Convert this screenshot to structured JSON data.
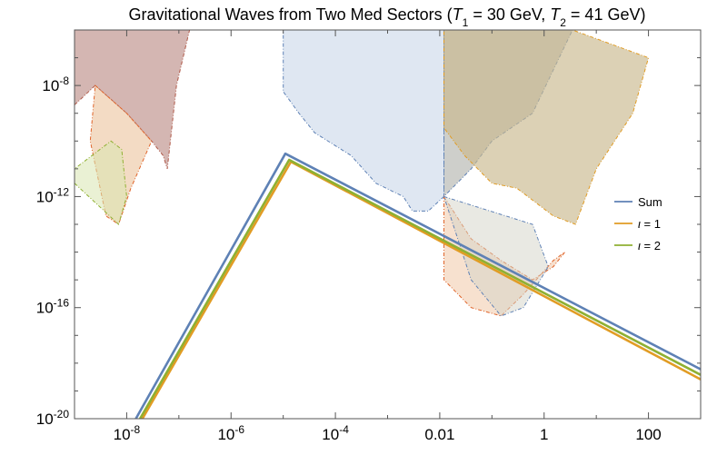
{
  "chart_data": {
    "type": "line",
    "title": "Gravitational Waves from Two Med Sectors (T1 = 30 GeV, T2 = 41 GeV)",
    "title_parts": {
      "prefix": "Gravitational Waves from Two Med Sectors (",
      "t1_symbol": "T",
      "t1_sub": "1",
      "t1_value": " = 30 GeV, ",
      "t2_symbol": "T",
      "t2_sub": "2",
      "t2_value": " = 41 GeV)"
    },
    "xlabel": "",
    "ylabel": "",
    "x_scale": "log",
    "y_scale": "log",
    "xlim": [
      1e-09,
      1000
    ],
    "ylim": [
      1e-20,
      1e-06
    ],
    "x_ticks": [
      {
        "value": 1e-08,
        "base": "10",
        "exp": "-8"
      },
      {
        "value": 1e-06,
        "base": "10",
        "exp": "-6"
      },
      {
        "value": 0.0001,
        "base": "10",
        "exp": "-4"
      },
      {
        "value": 0.01,
        "label": "0.01"
      },
      {
        "value": 1,
        "label": "1"
      },
      {
        "value": 100,
        "label": "100"
      }
    ],
    "y_ticks": [
      {
        "value": 1e-20,
        "base": "10",
        "exp": "-20"
      },
      {
        "value": 1e-16,
        "base": "10",
        "exp": "-16"
      },
      {
        "value": 1e-12,
        "base": "10",
        "exp": "-12"
      },
      {
        "value": 1e-08,
        "base": "10",
        "exp": "-8"
      }
    ],
    "grid": false,
    "legend_position": "right",
    "series": [
      {
        "name": "Sum",
        "color": "#5E81B5",
        "x": [
          1.5e-08,
          1.1e-05,
          1000
        ],
        "y": [
          1e-20,
          3.5e-11,
          6e-19
        ]
      },
      {
        "name": "ι = 1",
        "color": "#E19C24",
        "x": [
          2e-08,
          1.4e-05,
          1000
        ],
        "y": [
          1e-20,
          1.8e-11,
          2.6e-19
        ]
      },
      {
        "name": "ι = 2",
        "color": "#8FB032",
        "x": [
          1.8e-08,
          1.3e-05,
          1000
        ],
        "y": [
          1e-20,
          2.1e-11,
          3.8e-19
        ]
      }
    ],
    "sensitivity_regions": [
      {
        "fill": "#b07a72",
        "stroke": "#b05a4a",
        "opacity": 0.55,
        "points": [
          [
            1e-09,
            1e-06
          ],
          [
            1.6e-07,
            1e-06
          ],
          [
            9e-08,
            1e-08
          ],
          [
            6e-08,
            1e-11
          ],
          [
            5e-08,
            3e-11
          ],
          [
            3e-08,
            1e-10
          ],
          [
            1e-08,
            1e-09
          ],
          [
            2.5e-09,
            1e-08
          ],
          [
            1e-09,
            2e-09
          ]
        ]
      },
      {
        "fill": "#e8b88a",
        "stroke": "#e0642a",
        "opacity": 0.5,
        "points": [
          [
            2.5e-09,
            1e-08
          ],
          [
            1e-08,
            1e-09
          ],
          [
            3e-08,
            1e-10
          ],
          [
            1.2e-08,
            2e-12
          ],
          [
            7e-09,
            1e-13
          ],
          [
            4e-09,
            2e-13
          ],
          [
            2e-09,
            1e-10
          ]
        ]
      },
      {
        "fill": "#d8e6b0",
        "stroke": "#8fb032",
        "opacity": 0.55,
        "points": [
          [
            1e-09,
            3e-12
          ],
          [
            7e-09,
            1e-13
          ],
          [
            1e-08,
            1e-12
          ],
          [
            8e-09,
            5e-11
          ],
          [
            5e-09,
            1e-10
          ],
          [
            1e-09,
            1e-11
          ]
        ]
      },
      {
        "fill": "#c5d3e8",
        "stroke": "#5e81b5",
        "opacity": 0.55,
        "points": [
          [
            1e-05,
            1e-06
          ],
          [
            0.012,
            1e-06
          ],
          [
            0.012,
            1e-12
          ],
          [
            0.006,
            3e-13
          ],
          [
            0.003,
            3e-13
          ],
          [
            0.002,
            1e-12
          ],
          [
            0.0006,
            3e-12
          ],
          [
            0.0002,
            3e-11
          ],
          [
            4e-05,
            2e-10
          ],
          [
            2e-05,
            1e-09
          ],
          [
            1e-05,
            6e-09
          ]
        ]
      },
      {
        "fill": "#adafa8",
        "stroke": "#5e81b5",
        "opacity": 0.6,
        "points": [
          [
            0.012,
            1e-06
          ],
          [
            3.5,
            1e-06
          ],
          [
            0.6,
            1e-09
          ],
          [
            0.1,
            1e-10
          ],
          [
            0.04,
            1e-11
          ],
          [
            0.012,
            1e-12
          ]
        ]
      },
      {
        "fill": "#f0c8a8",
        "stroke": "#e0642a",
        "opacity": 0.55,
        "points": [
          [
            0.012,
            1e-12
          ],
          [
            0.04,
            3e-14
          ],
          [
            0.15,
            5e-15
          ],
          [
            0.6,
            1e-15
          ],
          [
            1.5,
            3e-15
          ],
          [
            2.5,
            1e-14
          ],
          [
            1.5,
            5e-15
          ],
          [
            0.4,
            3e-16
          ],
          [
            0.15,
            5e-17
          ],
          [
            0.04,
            1e-16
          ],
          [
            0.012,
            1e-15
          ]
        ]
      },
      {
        "fill": "#d4d4c8",
        "stroke": "#5e81b5",
        "opacity": 0.5,
        "points": [
          [
            0.012,
            1e-12
          ],
          [
            0.6,
            1e-13
          ],
          [
            1.2,
            3e-15
          ],
          [
            0.4,
            1e-16
          ],
          [
            0.15,
            5e-17
          ],
          [
            0.04,
            1e-15
          ]
        ]
      },
      {
        "fill": "#c9b88e",
        "stroke": "#e19c24",
        "opacity": 0.65,
        "points": [
          [
            0.012,
            1e-06
          ],
          [
            3.5,
            1e-06
          ],
          [
            100,
            1e-07
          ],
          [
            50,
            1e-09
          ],
          [
            10,
            1e-11
          ],
          [
            4,
            1e-13
          ],
          [
            1.5,
            2e-13
          ],
          [
            0.3,
            2e-12
          ],
          [
            0.1,
            3e-12
          ],
          [
            0.03,
            3e-11
          ],
          [
            0.012,
            3e-10
          ]
        ]
      }
    ]
  }
}
